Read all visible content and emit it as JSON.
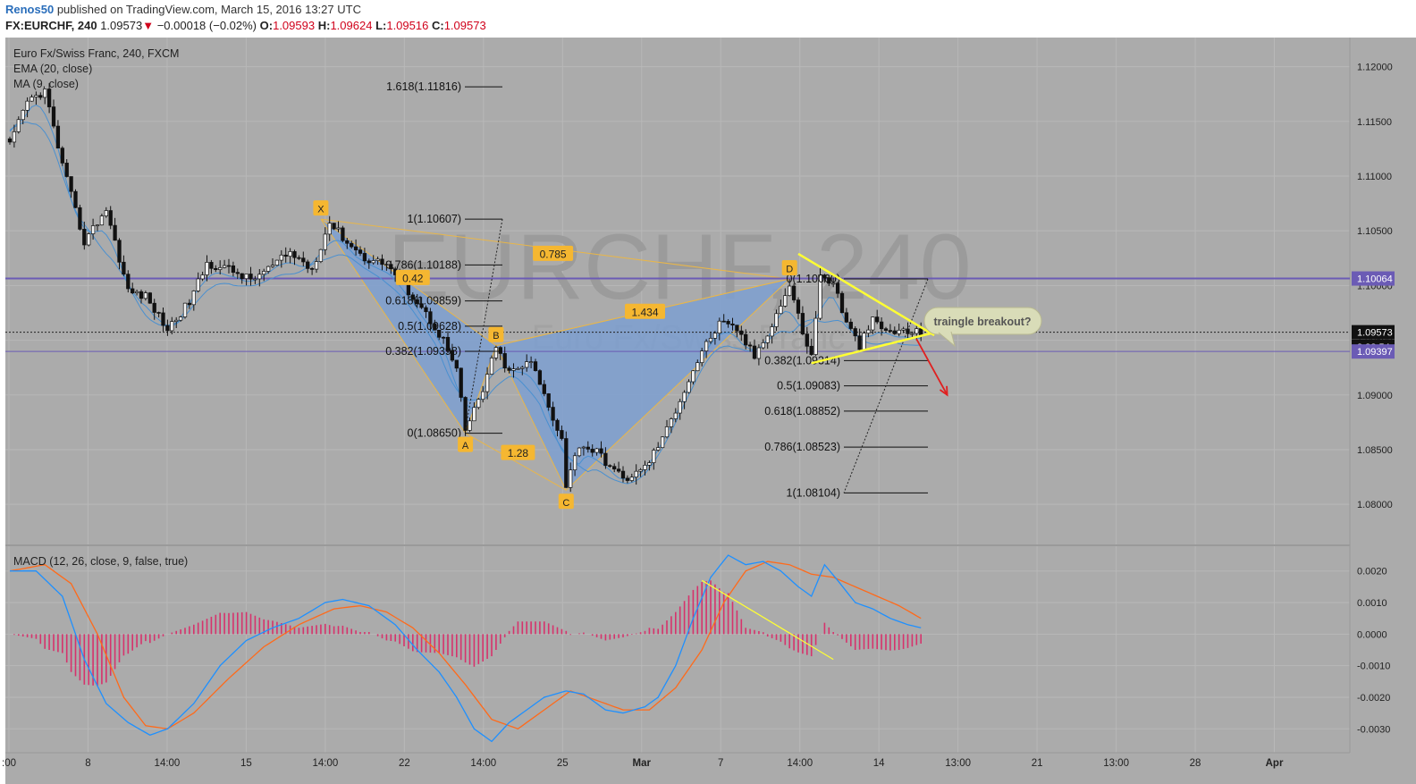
{
  "header": {
    "author": "Renos50",
    "published": "published on TradingView.com, March 15, 2016 13:27 UTC",
    "symbol": "FX:EURCHF, 240",
    "last": "1.09573",
    "down_arrow": "▼",
    "change": "−0.00018 (−0.02%)",
    "o_key": "O:",
    "o_val": "1.09593",
    "h_key": "H:",
    "h_val": "1.09624",
    "l_key": "L:",
    "l_val": "1.09516",
    "c_key": "C:",
    "c_val": "1.09573"
  },
  "legend": {
    "title": "Euro Fx/Swiss Franc, 240, FXCM",
    "ema": "EMA (20, close)",
    "ma": "MA (9, close)",
    "macd": "MACD (12, 26, close, 9, false, true)"
  },
  "watermark": {
    "big": "EURCHF, 240",
    "sub": "Euro Fx/Swiss Franc"
  },
  "colors": {
    "pane_bg": "#ababab",
    "grid": "#b8b8b8",
    "pattern_fill": "#7d9fd0",
    "pattern_line": "#e8b64a",
    "label_bg": "#f5b731",
    "triangle": "#ffff33",
    "arrow": "#e02020",
    "purple": "#6b5bb5",
    "ma_blue": "#4a90d0",
    "macd_blue": "#1e90ff",
    "signal_orange": "#ff6a1a",
    "hist": "#d6336c"
  },
  "chart_data": {
    "type": "candlestick",
    "price_axis": {
      "ticks": [
        "1.12000",
        "1.11500",
        "1.11000",
        "1.10500",
        "1.10000",
        "1.09500",
        "1.09000",
        "1.08500",
        "1.08000"
      ],
      "range": [
        1.0765,
        1.1225
      ]
    },
    "time_axis": {
      "ticks": [
        ":00",
        "8",
        "14:00",
        "15",
        "14:00",
        "22",
        "14:00",
        "25",
        "Mar",
        "7",
        "14:00",
        "14",
        "13:00",
        "21",
        "13:00",
        "28",
        "Apr"
      ]
    },
    "price_tags": [
      {
        "text": "1.10064",
        "kind": "purple",
        "value": 1.10064
      },
      {
        "text": "1.09573",
        "kind": "current",
        "value": 1.09573
      },
      {
        "text": "3:32:54",
        "kind": "countdown",
        "value": 1.0944
      },
      {
        "text": "1.09397",
        "kind": "purple",
        "value": 1.09397
      }
    ],
    "horizontal_lines": [
      1.10064,
      1.09397
    ],
    "pattern_points": [
      {
        "label": "X",
        "bar": 71,
        "price": 1.10607
      },
      {
        "label": "A",
        "bar": 104,
        "price": 1.0865
      },
      {
        "label": "B",
        "bar": 111,
        "price": 1.0945
      },
      {
        "label": "C",
        "bar": 127,
        "price": 1.0813
      },
      {
        "label": "D",
        "bar": 178,
        "price": 1.1006
      }
    ],
    "pattern_ratios": [
      {
        "text": "0.785",
        "bar": 124,
        "price": 1.1029
      },
      {
        "text": "1.28",
        "bar": 116,
        "price": 1.0847
      },
      {
        "text": "1.434",
        "bar": 145,
        "price": 1.0976
      },
      {
        "text": "0.42",
        "bar": 92,
        "price": 1.1007
      }
    ],
    "fib_left": [
      {
        "text": "1.618(1.11816)",
        "price": 1.11816
      },
      {
        "text": "1(1.10607)",
        "price": 1.10607
      },
      {
        "text": "0.786(1.10188)",
        "price": 1.10188
      },
      {
        "text": "0.618(1.09859)",
        "price": 1.09859
      },
      {
        "text": "0.5(1.09628)",
        "price": 1.09628
      },
      {
        "text": "0.382(1.09398)",
        "price": 1.09398
      },
      {
        "text": "0(1.08650)",
        "price": 1.0865
      }
    ],
    "fib_right": [
      {
        "text": "0(1.10060)",
        "price": 1.1006
      },
      {
        "text": "0.382(1.09314)",
        "price": 1.09314
      },
      {
        "text": "0.5(1.09083)",
        "price": 1.09083
      },
      {
        "text": "0.618(1.08852)",
        "price": 1.08852
      },
      {
        "text": "0.786(1.08523)",
        "price": 1.08523
      },
      {
        "text": "1(1.08104)",
        "price": 1.08104
      }
    ],
    "callout": "traingle breakout?",
    "triangle": {
      "upper": [
        [
          180,
          1.1029
        ],
        [
          209,
          1.0957
        ]
      ],
      "lower": [
        [
          183,
          1.0929
        ],
        [
          209,
          1.0957
        ]
      ]
    },
    "arrow": {
      "from": [
        207,
        1.0951
      ],
      "to": [
        214,
        1.09
      ]
    },
    "anchors": [
      [
        0,
        1.1128
      ],
      [
        4,
        1.1168
      ],
      [
        8,
        1.1178
      ],
      [
        12,
        1.111
      ],
      [
        17,
        1.104
      ],
      [
        22,
        1.107
      ],
      [
        27,
        1.0995
      ],
      [
        31,
        1.099
      ],
      [
        36,
        1.096
      ],
      [
        41,
        1.0985
      ],
      [
        45,
        1.102
      ],
      [
        50,
        1.1015
      ],
      [
        55,
        1.1005
      ],
      [
        59,
        1.1015
      ],
      [
        64,
        1.103
      ],
      [
        69,
        1.1015
      ],
      [
        73,
        1.1058
      ],
      [
        77,
        1.104
      ],
      [
        81,
        1.1025
      ],
      [
        86,
        1.102
      ],
      [
        90,
        1.1
      ],
      [
        94,
        1.098
      ],
      [
        99,
        1.095
      ],
      [
        102,
        1.0922
      ],
      [
        104,
        1.0867
      ],
      [
        108,
        1.0905
      ],
      [
        111,
        1.0943
      ],
      [
        114,
        1.092
      ],
      [
        119,
        1.093
      ],
      [
        123,
        1.089
      ],
      [
        126,
        1.086
      ],
      [
        127,
        1.0818
      ],
      [
        130,
        1.0855
      ],
      [
        134,
        1.0848
      ],
      [
        137,
        1.0835
      ],
      [
        140,
        1.0823
      ],
      [
        144,
        1.083
      ],
      [
        146,
        1.084
      ],
      [
        150,
        1.0868
      ],
      [
        154,
        1.0905
      ],
      [
        158,
        1.094
      ],
      [
        162,
        1.0965
      ],
      [
        166,
        1.096
      ],
      [
        170,
        1.0935
      ],
      [
        174,
        1.0965
      ],
      [
        178,
        1.1
      ],
      [
        181,
        1.0958
      ],
      [
        183,
        1.0935
      ],
      [
        185,
        1.1008
      ],
      [
        188,
        1.1003
      ],
      [
        191,
        1.0965
      ],
      [
        194,
        1.0945
      ],
      [
        197,
        1.0968
      ],
      [
        200,
        1.0958
      ],
      [
        203,
        1.0958
      ],
      [
        206,
        1.0957
      ],
      [
        208,
        1.0957
      ]
    ],
    "ma_offsets": {
      "ema": -0.0005,
      "ma": -0.0012
    },
    "macd_axis": {
      "ticks": [
        "0.0020",
        "0.0010",
        "0.0000",
        "-0.0010",
        "-0.0020",
        "-0.0030"
      ],
      "range": [
        -0.0037,
        0.0027
      ]
    },
    "macd_anchors": [
      [
        0,
        0.002
      ],
      [
        6,
        0.002
      ],
      [
        12,
        0.0012
      ],
      [
        17,
        -0.0008
      ],
      [
        22,
        -0.0022
      ],
      [
        27,
        -0.0028
      ],
      [
        32,
        -0.0032
      ],
      [
        36,
        -0.003
      ],
      [
        42,
        -0.0022
      ],
      [
        48,
        -0.001
      ],
      [
        54,
        -0.0002
      ],
      [
        60,
        0.0002
      ],
      [
        66,
        0.0005
      ],
      [
        72,
        0.001
      ],
      [
        76,
        0.0011
      ],
      [
        82,
        0.0009
      ],
      [
        88,
        0.0003
      ],
      [
        93,
        -0.0005
      ],
      [
        98,
        -0.0012
      ],
      [
        102,
        -0.002
      ],
      [
        106,
        -0.003
      ],
      [
        110,
        -0.0034
      ],
      [
        114,
        -0.0028
      ],
      [
        118,
        -0.0024
      ],
      [
        122,
        -0.002
      ],
      [
        127,
        -0.0018
      ],
      [
        131,
        -0.0019
      ],
      [
        136,
        -0.0024
      ],
      [
        140,
        -0.0025
      ],
      [
        145,
        -0.0023
      ],
      [
        148,
        -0.002
      ],
      [
        152,
        -0.001
      ],
      [
        156,
        0.0005
      ],
      [
        160,
        0.0018
      ],
      [
        164,
        0.0025
      ],
      [
        168,
        0.0022
      ],
      [
        172,
        0.0023
      ],
      [
        176,
        0.002
      ],
      [
        180,
        0.0015
      ],
      [
        183,
        0.0012
      ],
      [
        186,
        0.0022
      ],
      [
        189,
        0.0017
      ],
      [
        193,
        0.001
      ],
      [
        197,
        0.0008
      ],
      [
        201,
        0.0005
      ],
      [
        205,
        0.0003
      ],
      [
        208,
        0.0002
      ]
    ],
    "signal_anchors": [
      [
        0,
        0.002
      ],
      [
        8,
        0.0022
      ],
      [
        14,
        0.0016
      ],
      [
        20,
        0.0
      ],
      [
        26,
        -0.002
      ],
      [
        31,
        -0.0029
      ],
      [
        36,
        -0.003
      ],
      [
        42,
        -0.0025
      ],
      [
        50,
        -0.0014
      ],
      [
        58,
        -0.0004
      ],
      [
        66,
        0.0003
      ],
      [
        74,
        0.0008
      ],
      [
        80,
        0.0009
      ],
      [
        86,
        0.0007
      ],
      [
        92,
        0.0002
      ],
      [
        98,
        -0.0006
      ],
      [
        104,
        -0.0016
      ],
      [
        110,
        -0.0027
      ],
      [
        116,
        -0.003
      ],
      [
        122,
        -0.0024
      ],
      [
        128,
        -0.0018
      ],
      [
        134,
        -0.0021
      ],
      [
        140,
        -0.0024
      ],
      [
        146,
        -0.0024
      ],
      [
        152,
        -0.0017
      ],
      [
        158,
        -0.0005
      ],
      [
        163,
        0.001
      ],
      [
        168,
        0.002
      ],
      [
        173,
        0.0023
      ],
      [
        178,
        0.0022
      ],
      [
        183,
        0.0019
      ],
      [
        188,
        0.0018
      ],
      [
        193,
        0.0015
      ],
      [
        198,
        0.0012
      ],
      [
        203,
        0.0009
      ],
      [
        208,
        0.0005
      ]
    ],
    "macd_trendline": [
      [
        158,
        0.0017
      ],
      [
        188,
        -0.0008
      ]
    ]
  }
}
